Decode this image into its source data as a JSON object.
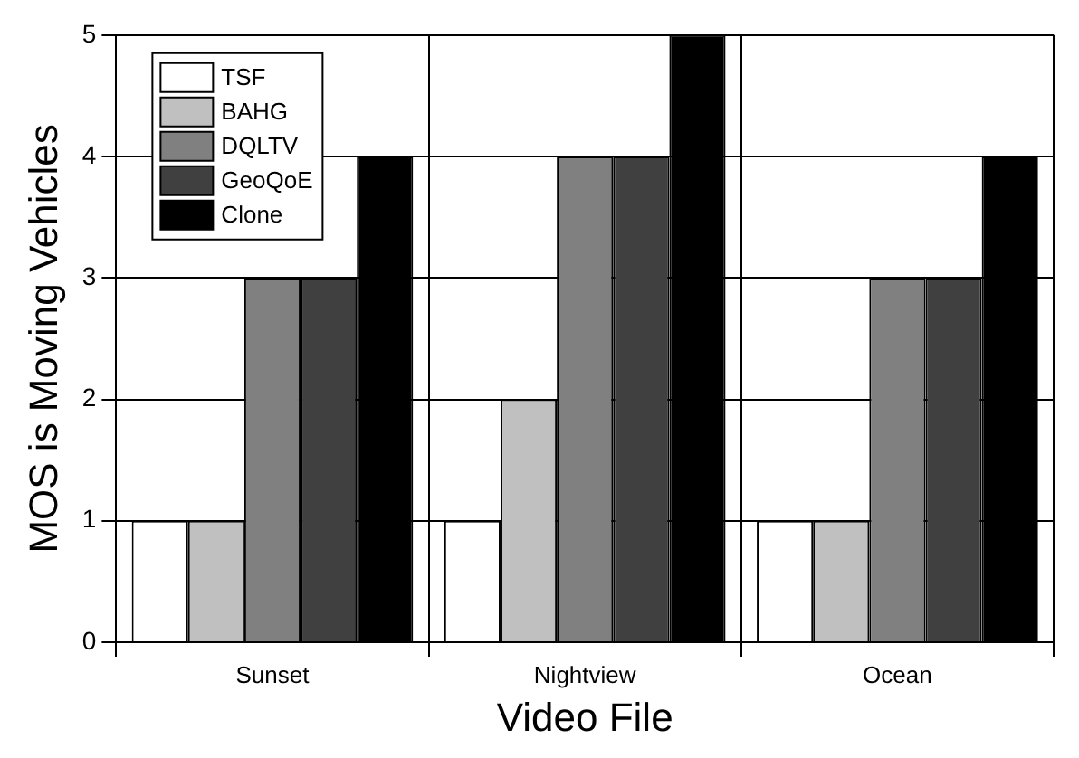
{
  "chart_data": {
    "type": "bar",
    "xlabel": "Video File",
    "ylabel": "MOS is Moving Vehicles",
    "categories": [
      "Sunset",
      "Nightview",
      "Ocean"
    ],
    "series": [
      {
        "name": "TSF",
        "color": "#ffffff",
        "values": [
          1,
          1,
          1
        ]
      },
      {
        "name": "BAHG",
        "color": "#c0c0c0",
        "values": [
          1,
          2,
          1
        ]
      },
      {
        "name": "DQLTV",
        "color": "#808080",
        "values": [
          3,
          4,
          3
        ]
      },
      {
        "name": "GeoQoE",
        "color": "#404040",
        "values": [
          3,
          4,
          3
        ]
      },
      {
        "name": "Clone",
        "color": "#000000",
        "values": [
          4,
          5,
          4
        ]
      }
    ],
    "ylim": [
      0,
      5
    ],
    "yticks": [
      0,
      1,
      2,
      3,
      4,
      5
    ],
    "grid": true,
    "legend": "top left"
  }
}
